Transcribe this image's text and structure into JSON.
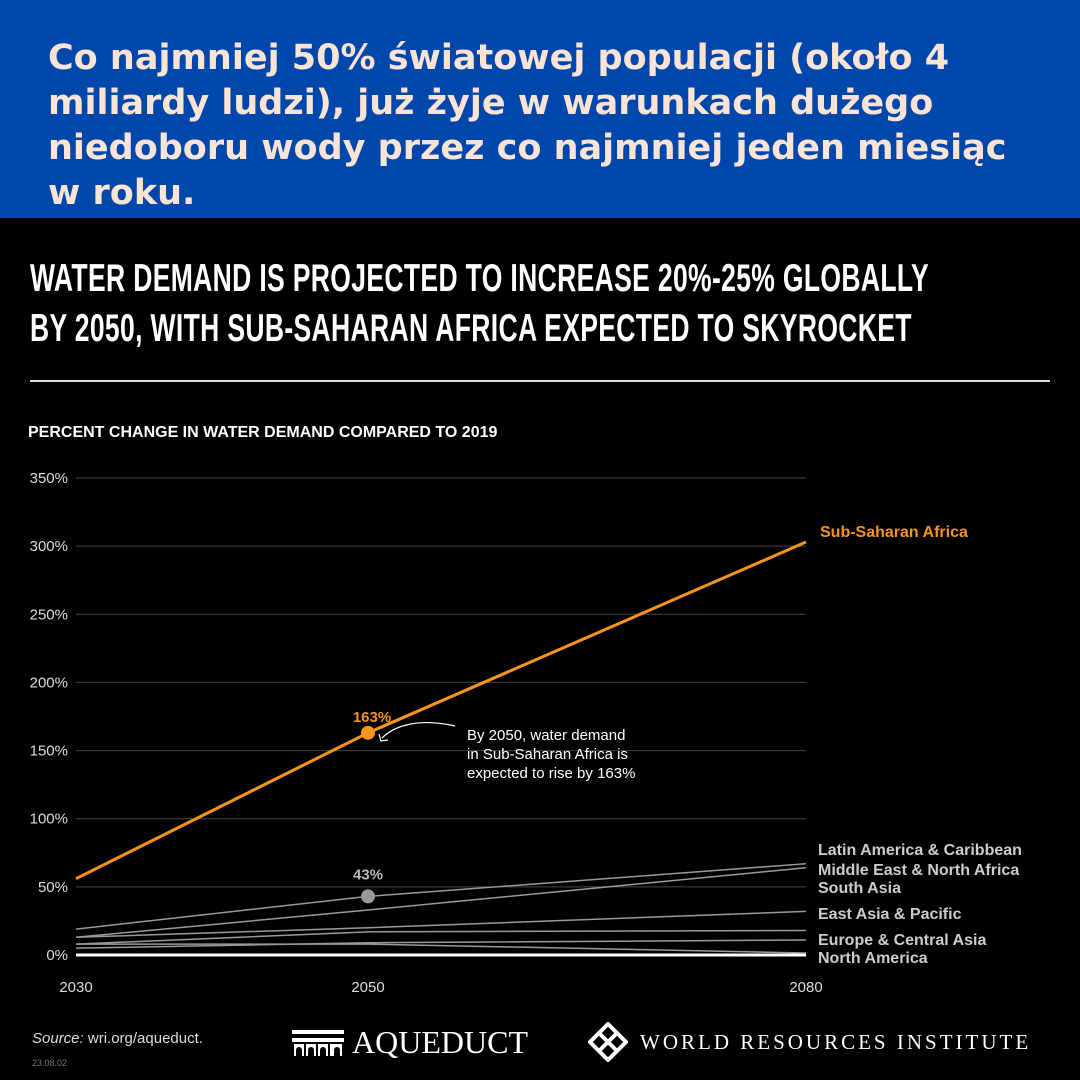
{
  "banner": {
    "text": "Co najmniej 50% światowej populacji (około 4 miliardy ludzi), już żyje w warunkach dużego niedoboru wody przez co najmniej jeden miesiąc w roku."
  },
  "title": {
    "line1": "WATER DEMAND IS PROJECTED TO INCREASE 20%-25% GLOBALLY",
    "line2": "BY 2050, WITH SUB-SAHARAN AFRICA EXPECTED TO SKYROCKET"
  },
  "colors": {
    "banner": "#0047AB",
    "accent": "#F7941D",
    "gray": "#999999"
  },
  "chart_data": {
    "type": "line",
    "title": "PERCENT CHANGE IN WATER DEMAND COMPARED TO 2019",
    "x": [
      2030,
      2050,
      2080
    ],
    "x_ticks": [
      "2030",
      "2050",
      "2080"
    ],
    "ylim": [
      0,
      350
    ],
    "y_ticks": [
      "0%",
      "50%",
      "100%",
      "150%",
      "200%",
      "250%",
      "300%",
      "350%"
    ],
    "grid": true,
    "series": [
      {
        "name": "Sub-Saharan Africa",
        "values": [
          56,
          163,
          303
        ],
        "color": "#F7941D"
      },
      {
        "name": "Latin America & Caribbean",
        "values": [
          19,
          43,
          67
        ],
        "color": "#999999"
      },
      {
        "name": "Middle East & North Africa",
        "values": [
          13,
          33,
          64
        ],
        "color": "#999999"
      },
      {
        "name": "South Asia",
        "values": [
          13,
          20,
          32
        ],
        "color": "#999999"
      },
      {
        "name": "East Asia & Pacific",
        "values": [
          8,
          17,
          18
        ],
        "color": "#999999"
      },
      {
        "name": "Europe & Central Asia",
        "values": [
          5,
          9,
          11
        ],
        "color": "#999999"
      },
      {
        "name": "North America",
        "values": [
          8,
          8,
          1.5
        ],
        "color": "#999999"
      },
      {
        "name": "",
        "values": [
          0,
          0,
          0
        ],
        "color": "#ffffff"
      }
    ],
    "annotations": [
      {
        "label": "163%",
        "series": "Sub-Saharan Africa",
        "x": 2050,
        "y": 163
      },
      {
        "label": "43%",
        "series": "Latin America & Caribbean",
        "x": 2050,
        "y": 43
      },
      {
        "text": "By 2050, water demand in Sub-Saharan Africa is expected to rise by 163%",
        "lines": [
          "By 2050, water demand",
          "in Sub-Saharan Africa is",
          "expected to rise by 163%"
        ]
      }
    ],
    "legend_labels": [
      "Latin America & Caribbean",
      "Middle East & North Africa",
      "South Asia",
      "East Asia & Pacific",
      "Europe & Central Asia",
      "North America"
    ]
  },
  "footer": {
    "source_label": "Source:",
    "source_text": " wri.org/aqueduct.",
    "date": "23.08.02",
    "aqueduct": "AQUEDUCT",
    "wri": "WORLD RESOURCES INSTITUTE"
  }
}
